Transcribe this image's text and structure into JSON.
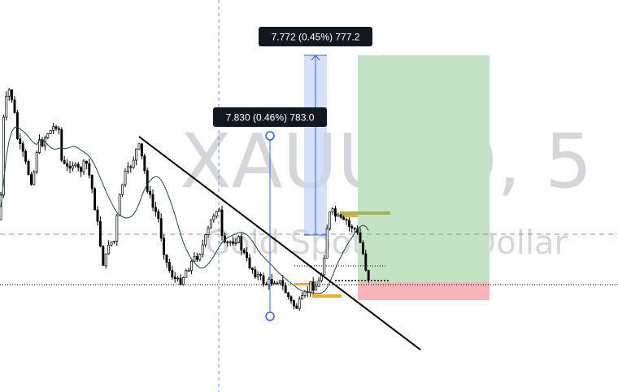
{
  "watermark": {
    "symbol": "XAUUSD, 5",
    "description": "Gold Spot / U.S. Dollar"
  },
  "measurements": [
    {
      "label": "7.830 (0.46%) 783.0"
    },
    {
      "label": "7.772 (0.45%) 777.2"
    }
  ],
  "colors": {
    "candle": "#000000",
    "moving_average": "#1b4d3e",
    "trendline": "#000000",
    "measure_line": "#2962ff",
    "measure_zone": "#c8d6f7",
    "profit_zone": "#c3e3c4",
    "stop_zone": "#f8b4b8",
    "highlight": "#f9a825",
    "highlight_olive": "#a6b35a",
    "crosshair": "#2962ff"
  },
  "chart_data": {
    "type": "candlestick",
    "symbol": "XAUUSD",
    "timeframe": "5",
    "grid": false,
    "price_scale_visible": false,
    "annotations": [
      {
        "kind": "trendline",
        "from_index": 70,
        "to_index": 205
      },
      {
        "kind": "price_range",
        "index": 131,
        "text": "7.830 (0.46%) 783.0"
      },
      {
        "kind": "price_range",
        "index": 153,
        "text": "7.772 (0.45%) 777.2"
      },
      {
        "kind": "long_position",
        "from_index": 176,
        "to_index": 240
      },
      {
        "kind": "vertical_crosshair",
        "index": 106
      },
      {
        "kind": "horizontal_crosshair"
      }
    ]
  }
}
